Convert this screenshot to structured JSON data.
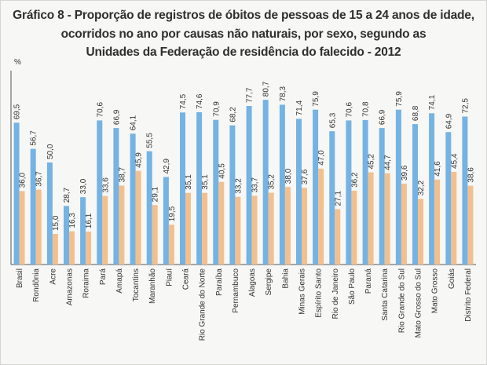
{
  "title": {
    "line1": "Gráfico 8 - Proporção de registros de óbitos de pessoas de 15 a 24 anos de idade,",
    "line2": "ocorridos no ano por causas não naturais, por sexo, segundo as",
    "line3": "Unidades da Federação de residência do falecido - 2012"
  },
  "chart_data": {
    "type": "bar",
    "unit": "%",
    "ylim": [
      0,
      100
    ],
    "grid": false,
    "categories": [
      "Brasil",
      "Rondônia",
      "Acre",
      "Amazonas",
      "Roraima",
      "Pará",
      "Amapá",
      "Tocantins",
      "Maranhão",
      "Piauí",
      "Ceará",
      "Rio Grande do Norte",
      "Paraíba",
      "Pernambuco",
      "Alagoas",
      "Sergipe",
      "Bahia",
      "Minas Gerais",
      "Espírito Santo",
      "Rio de Janeiro",
      "São Paulo",
      "Paraná",
      "Santa Catarina",
      "Rio Grande do Sul",
      "Mato Grosso do Sul",
      "Mato Grosso",
      "Goiás",
      "Distrito Federal"
    ],
    "series": [
      {
        "values": [
          69.5,
          56.7,
          50.0,
          28.7,
          33.0,
          70.6,
          66.9,
          64.1,
          55.5,
          42.9,
          74.5,
          74.6,
          70.9,
          68.2,
          77.7,
          80.7,
          78.3,
          71.4,
          75.9,
          65.3,
          70.6,
          70.8,
          66.9,
          75.9,
          68.8,
          74.1,
          64.9,
          72.5
        ],
        "color": "#74b3e3"
      },
      {
        "values": [
          36.0,
          36.7,
          15.0,
          16.3,
          16.1,
          33.6,
          38.7,
          45.9,
          29.1,
          19.5,
          35.1,
          35.1,
          40.5,
          33.2,
          33.7,
          35.2,
          38.0,
          37.6,
          47.0,
          27.1,
          36.2,
          45.2,
          44.7,
          39.6,
          32.2,
          41.6,
          45.4,
          38.6
        ],
        "color": "#f2c08f"
      }
    ]
  }
}
